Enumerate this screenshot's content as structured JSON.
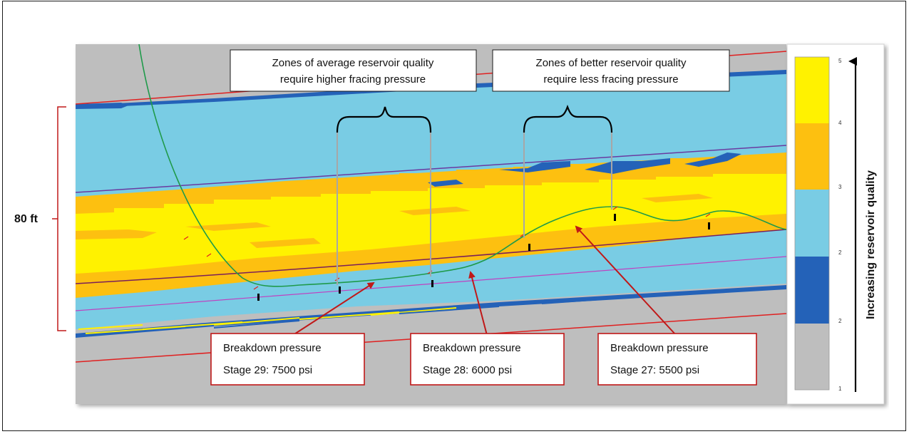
{
  "scale": {
    "label": "80 ft"
  },
  "callouts": {
    "average": [
      "Zones of average reservoir quality",
      "require higher fracing pressure"
    ],
    "better": [
      "Zones of better reservoir quality",
      "require less fracing pressure"
    ]
  },
  "pressure_boxes": [
    {
      "line1": "Breakdown pressure",
      "line2": "Stage 29: 7500 psi"
    },
    {
      "line1": "Breakdown pressure",
      "line2": "Stage 28: 6000 psi"
    },
    {
      "line1": "Breakdown pressure",
      "line2": "Stage 27: 5500 psi"
    }
  ],
  "legend": {
    "title": "Increasing reservoir quality",
    "tick_labels": [
      "5",
      "4",
      "3",
      "2",
      "2",
      "1"
    ],
    "colors": {
      "yellow": "#fff200",
      "orange": "#fdc010",
      "light_blue": "#79cce4",
      "dark_blue": "#2462b8",
      "gray": "#bebebe"
    }
  },
  "colors": {
    "wellbore": "#1f9a4a",
    "red_horizon": "#e02020",
    "purple_horizon": "#6a3aa0",
    "magenta_horizon": "#c040c0",
    "callout_border": "#c01818",
    "arrow": "#c01818"
  }
}
